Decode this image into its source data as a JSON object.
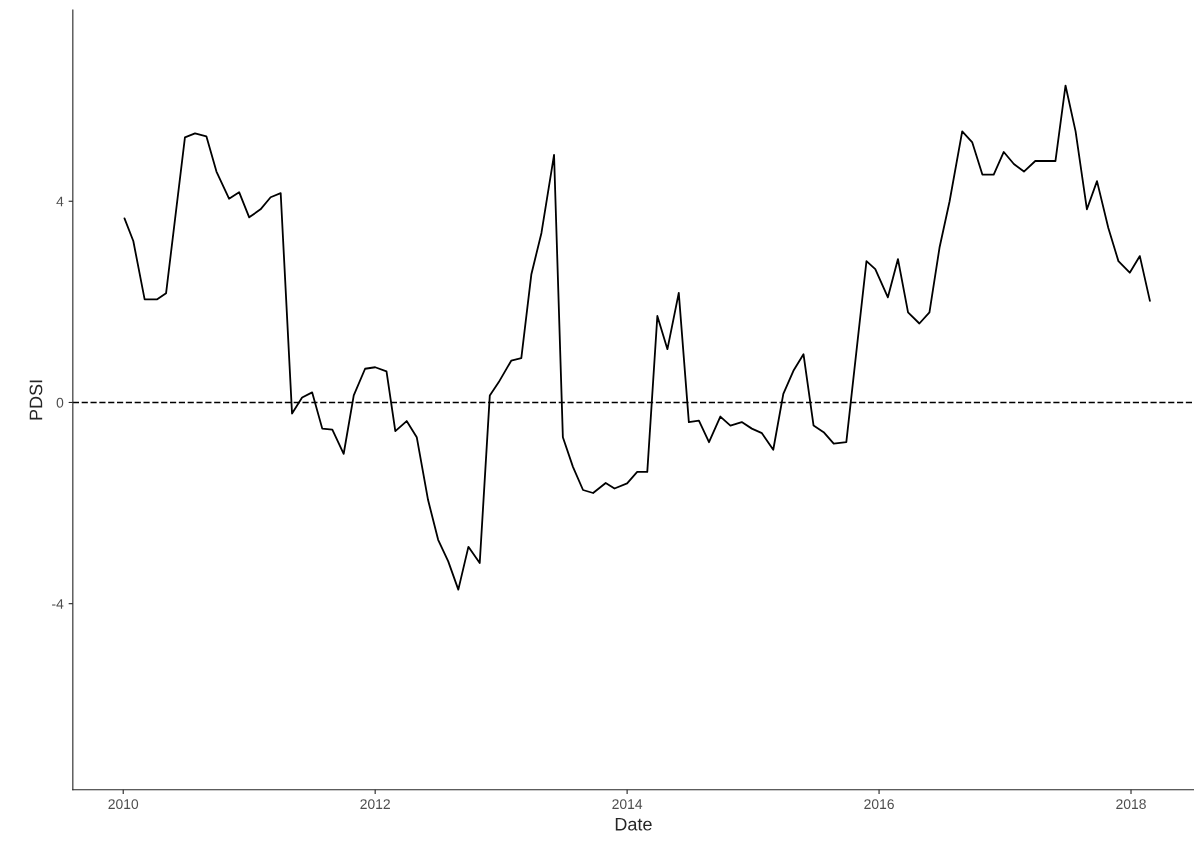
{
  "chart_data": {
    "type": "line",
    "xlabel": "Date",
    "ylabel": "PDSI",
    "x": [
      2010.01,
      2010.08,
      2010.17,
      2010.27,
      2010.34,
      2010.49,
      2010.57,
      2010.66,
      2010.74,
      2010.84,
      2010.92,
      2011.0,
      2011.09,
      2011.17,
      2011.25,
      2011.34,
      2011.42,
      2011.5,
      2011.58,
      2011.66,
      2011.75,
      2011.83,
      2011.92,
      2012.0,
      2012.09,
      2012.16,
      2012.25,
      2012.33,
      2012.42,
      2012.5,
      2012.58,
      2012.66,
      2012.74,
      2012.83,
      2012.91,
      2012.98,
      2013.08,
      2013.16,
      2013.24,
      2013.32,
      2013.42,
      2013.49,
      2013.57,
      2013.65,
      2013.73,
      2013.83,
      2013.9,
      2014.0,
      2014.08,
      2014.16,
      2014.24,
      2014.32,
      2014.41,
      2014.49,
      2014.57,
      2014.65,
      2014.74,
      2014.82,
      2014.91,
      2014.99,
      2015.07,
      2015.16,
      2015.24,
      2015.32,
      2015.4,
      2015.48,
      2015.56,
      2015.64,
      2015.74,
      2015.9,
      2015.97,
      2016.07,
      2016.15,
      2016.23,
      2016.32,
      2016.4,
      2016.48,
      2016.56,
      2016.66,
      2016.74,
      2016.82,
      2016.91,
      2016.99,
      2017.07,
      2017.15,
      2017.24,
      2017.32,
      2017.4,
      2017.48,
      2017.56,
      2017.65,
      2017.73,
      2017.82,
      2017.9,
      2017.99,
      2018.07,
      2018.15
    ],
    "series": [
      {
        "color": "#000000",
        "values": [
          3.66,
          3.21,
          2.05,
          2.05,
          2.17,
          5.27,
          5.35,
          5.29,
          4.59,
          4.05,
          4.18,
          3.68,
          3.84,
          4.08,
          4.16,
          -0.22,
          0.1,
          0.2,
          -0.52,
          -0.54,
          -1.02,
          0.14,
          0.67,
          0.7,
          0.62,
          -0.57,
          -0.37,
          -0.69,
          -1.94,
          -2.73,
          -3.16,
          -3.72,
          -2.87,
          -3.19,
          0.14,
          0.4,
          0.83,
          0.88,
          2.55,
          3.37,
          4.92,
          -0.69,
          -1.28,
          -1.74,
          -1.8,
          -1.6,
          -1.71,
          -1.61,
          -1.38,
          -1.38,
          1.72,
          1.06,
          2.18,
          -0.39,
          -0.36,
          -0.79,
          -0.28,
          -0.46,
          -0.39,
          -0.52,
          -0.61,
          -0.94,
          0.17,
          0.63,
          0.96,
          -0.46,
          -0.59,
          -0.82,
          -0.79,
          2.81,
          2.65,
          2.09,
          2.85,
          1.79,
          1.57,
          1.79,
          3.08,
          4.0,
          5.39,
          5.17,
          4.53,
          4.53,
          4.98,
          4.74,
          4.59,
          4.8,
          4.8,
          4.8,
          6.3,
          5.39,
          3.84,
          4.4,
          3.47,
          2.81,
          2.58,
          2.91,
          2.02
        ]
      }
    ],
    "xlim": [
      2009.6,
      2018.5
    ],
    "ylim": [
      -7.7,
      7.8
    ],
    "xticks": [
      2010,
      2012,
      2014,
      2016,
      2018
    ],
    "yticks": [
      {
        "value": -4,
        "label": "-4"
      },
      0,
      4
    ],
    "ref_lines": [
      {
        "axis": "y",
        "value": 0,
        "line_style": "dashed",
        "color": "#000000"
      }
    ],
    "grid": false,
    "legend": false,
    "line_style": "solid",
    "marker": "none"
  }
}
